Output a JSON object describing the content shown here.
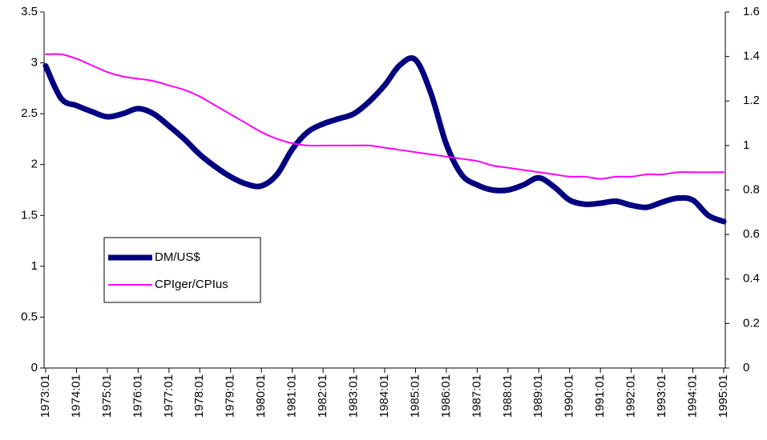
{
  "chart_data": {
    "type": "line",
    "x": [
      "1973:01",
      null,
      "1974:01",
      null,
      "1975:01",
      null,
      "1976:01",
      null,
      "1977:01",
      null,
      "1978:01",
      null,
      "1979:01",
      null,
      "1980:01",
      null,
      "1981:01",
      null,
      "1982:01",
      null,
      "1983:01",
      null,
      "1984:01",
      null,
      "1985:01",
      null,
      "1986:01",
      null,
      "1987:01",
      null,
      "1988:01",
      null,
      "1989:01",
      null,
      "1990:01",
      null,
      "1991:01",
      null,
      "1992:01",
      null,
      "1993:01",
      null,
      "1994:01",
      null,
      "1995:01"
    ],
    "series": [
      {
        "name": "DM/US$",
        "color": "#000080",
        "values": [
          2.97,
          2.65,
          2.58,
          2.52,
          2.47,
          2.5,
          2.55,
          2.5,
          2.38,
          2.25,
          2.1,
          1.98,
          1.88,
          1.81,
          1.79,
          1.9,
          2.15,
          2.32,
          2.4,
          2.45,
          2.5,
          2.62,
          2.78,
          2.98,
          3.03,
          2.7,
          2.2,
          1.9,
          1.8,
          1.75,
          1.75,
          1.8,
          1.87,
          1.78,
          1.65,
          1.61,
          1.62,
          1.64,
          1.6,
          1.58,
          1.63,
          1.67,
          1.65,
          1.5,
          1.44
        ]
      },
      {
        "name": "CPIger/CPIus",
        "color": "#ff00ff",
        "axis": "y2",
        "values": [
          1.41,
          1.41,
          1.39,
          1.36,
          1.33,
          1.31,
          1.3,
          1.29,
          1.27,
          1.25,
          1.22,
          1.18,
          1.14,
          1.1,
          1.06,
          1.03,
          1.01,
          1.0,
          1.0,
          1.0,
          1.0,
          1.0,
          0.99,
          0.98,
          0.97,
          0.96,
          0.95,
          0.94,
          0.93,
          0.91,
          0.9,
          0.89,
          0.88,
          0.87,
          0.86,
          0.86,
          0.85,
          0.86,
          0.86,
          0.87,
          0.87,
          0.88,
          0.88,
          0.88,
          0.88
        ]
      }
    ],
    "ylim": [
      0,
      3.5
    ],
    "yticks": [
      0,
      0.5,
      1,
      1.5,
      2,
      2.5,
      3,
      3.5
    ],
    "y2lim": [
      0,
      1.6
    ],
    "y2ticks": [
      0,
      0.2,
      0.4,
      0.6,
      0.8,
      1,
      1.2,
      1.4,
      1.6
    ]
  }
}
